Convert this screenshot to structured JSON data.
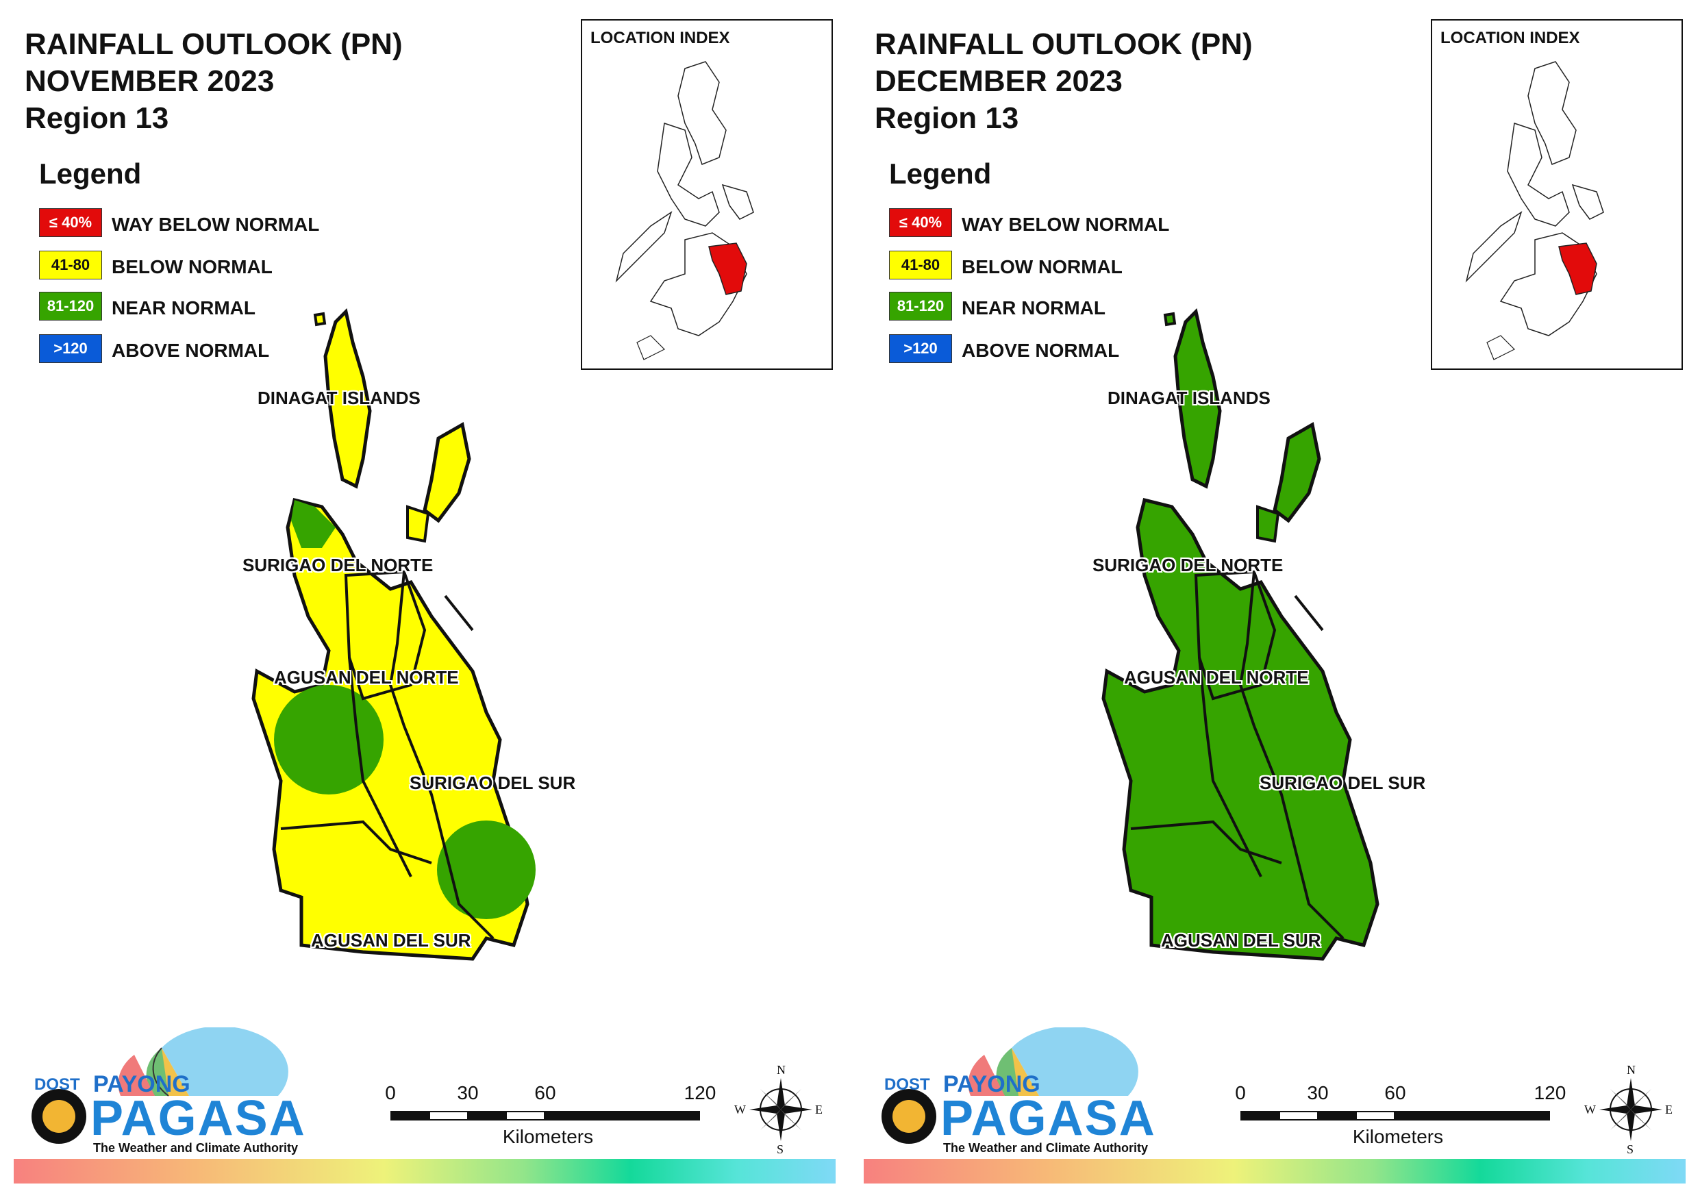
{
  "colors": {
    "way_below": "#e20b0b",
    "below": "#ffff00",
    "near": "#36a400",
    "above": "#0a5bd8",
    "brand_blue": "#1f84d6"
  },
  "legend": {
    "heading": "Legend",
    "items": [
      {
        "range": "≤ 40%",
        "label": "WAY BELOW NORMAL",
        "color": "#e20b0b",
        "text_color": "#ffffff"
      },
      {
        "range": "41-80",
        "label": "BELOW NORMAL",
        "color": "#ffff00",
        "text_color": "#111111"
      },
      {
        "range": "81-120",
        "label": "NEAR NORMAL",
        "color": "#36a400",
        "text_color": "#ffffff"
      },
      {
        "range": ">120",
        "label": "ABOVE NORMAL",
        "color": "#0a5bd8",
        "text_color": "#ffffff"
      }
    ]
  },
  "inset": {
    "title": "LOCATION INDEX"
  },
  "provinces": [
    "DINAGAT ISLANDS",
    "SURIGAO DEL NORTE",
    "AGUSAN DEL NORTE",
    "SURIGAO DEL SUR",
    "AGUSAN DEL SUR"
  ],
  "scale": {
    "ticks": [
      "0",
      "30",
      "60",
      "120"
    ],
    "unit": "Kilometers"
  },
  "compass": {
    "n": "N",
    "s": "S",
    "e": "E",
    "w": "W"
  },
  "logo": {
    "dost": "DOST",
    "payong": "PAYONG",
    "pagasa": "PAGASA",
    "tagline": "The Weather and Climate Authority"
  },
  "panels": [
    {
      "title_line1": "RAINFALL OUTLOOK (PN)",
      "title_line2": "NOVEMBER 2023",
      "title_line3": "Region 13",
      "base_category": "below",
      "patch_category": "near"
    },
    {
      "title_line1": "RAINFALL OUTLOOK (PN)",
      "title_line2": "DECEMBER 2023",
      "title_line3": "Region 13",
      "base_category": "near",
      "patch_category": "near"
    }
  ]
}
